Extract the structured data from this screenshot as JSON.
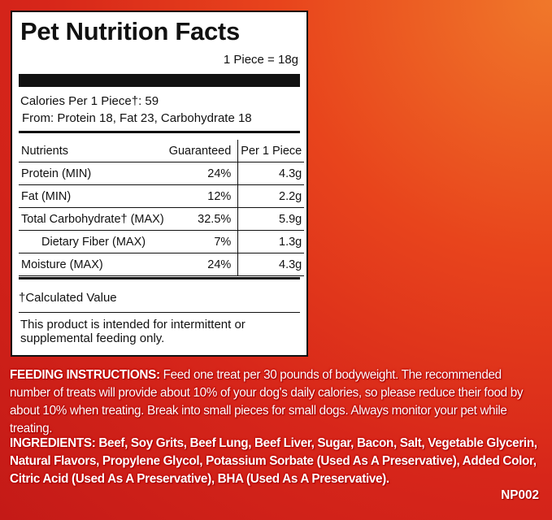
{
  "panel": {
    "title": "Pet Nutrition Facts",
    "serving": "1 Piece = 18g",
    "calories": "Calories Per 1 Piece†: 59",
    "calories_from": "From: Protein 18, Fat 23, Carbohydrate 18",
    "table": {
      "header": [
        "Nutrients",
        "Guaranteed",
        "Per 1 Piece"
      ],
      "rows": [
        [
          "Protein (MIN)",
          "24%",
          "4.3g"
        ],
        [
          "Fat (MIN)",
          "12%",
          "2.2g"
        ],
        [
          "Total Carbohydrate† (MAX)",
          "32.5%",
          "5.9g"
        ],
        [
          "Dietary Fiber (MAX)",
          "7%",
          "1.3g"
        ],
        [
          "Moisture (MAX)",
          "24%",
          "4.3g"
        ]
      ]
    },
    "footnote": "†Calculated Value",
    "statement": "This product is intended for intermittent or supplemental feeding only."
  },
  "feeding": {
    "label": "FEEDING INSTRUCTIONS:",
    "text": "Feed one treat per 30 pounds of bodyweight. The recommended number of treats will provide about 10% of your dog's daily calories, so please reduce their food by about 10% when treating. Break into small pieces for small dogs. Always monitor your pet while treating."
  },
  "ingredients": {
    "label": "INGREDIENTS:",
    "text": "Beef, Soy Grits, Beef Lung, Beef Liver, Sugar, Bacon, Salt, Vegetable Glycerin, Natural Flavors, Propylene Glycol, Potassium Sorbate (Used As A Preservative), Added Color, Citric Acid (Used As A Preservative), BHA (Used As A Preservative)."
  },
  "code": "NP002"
}
